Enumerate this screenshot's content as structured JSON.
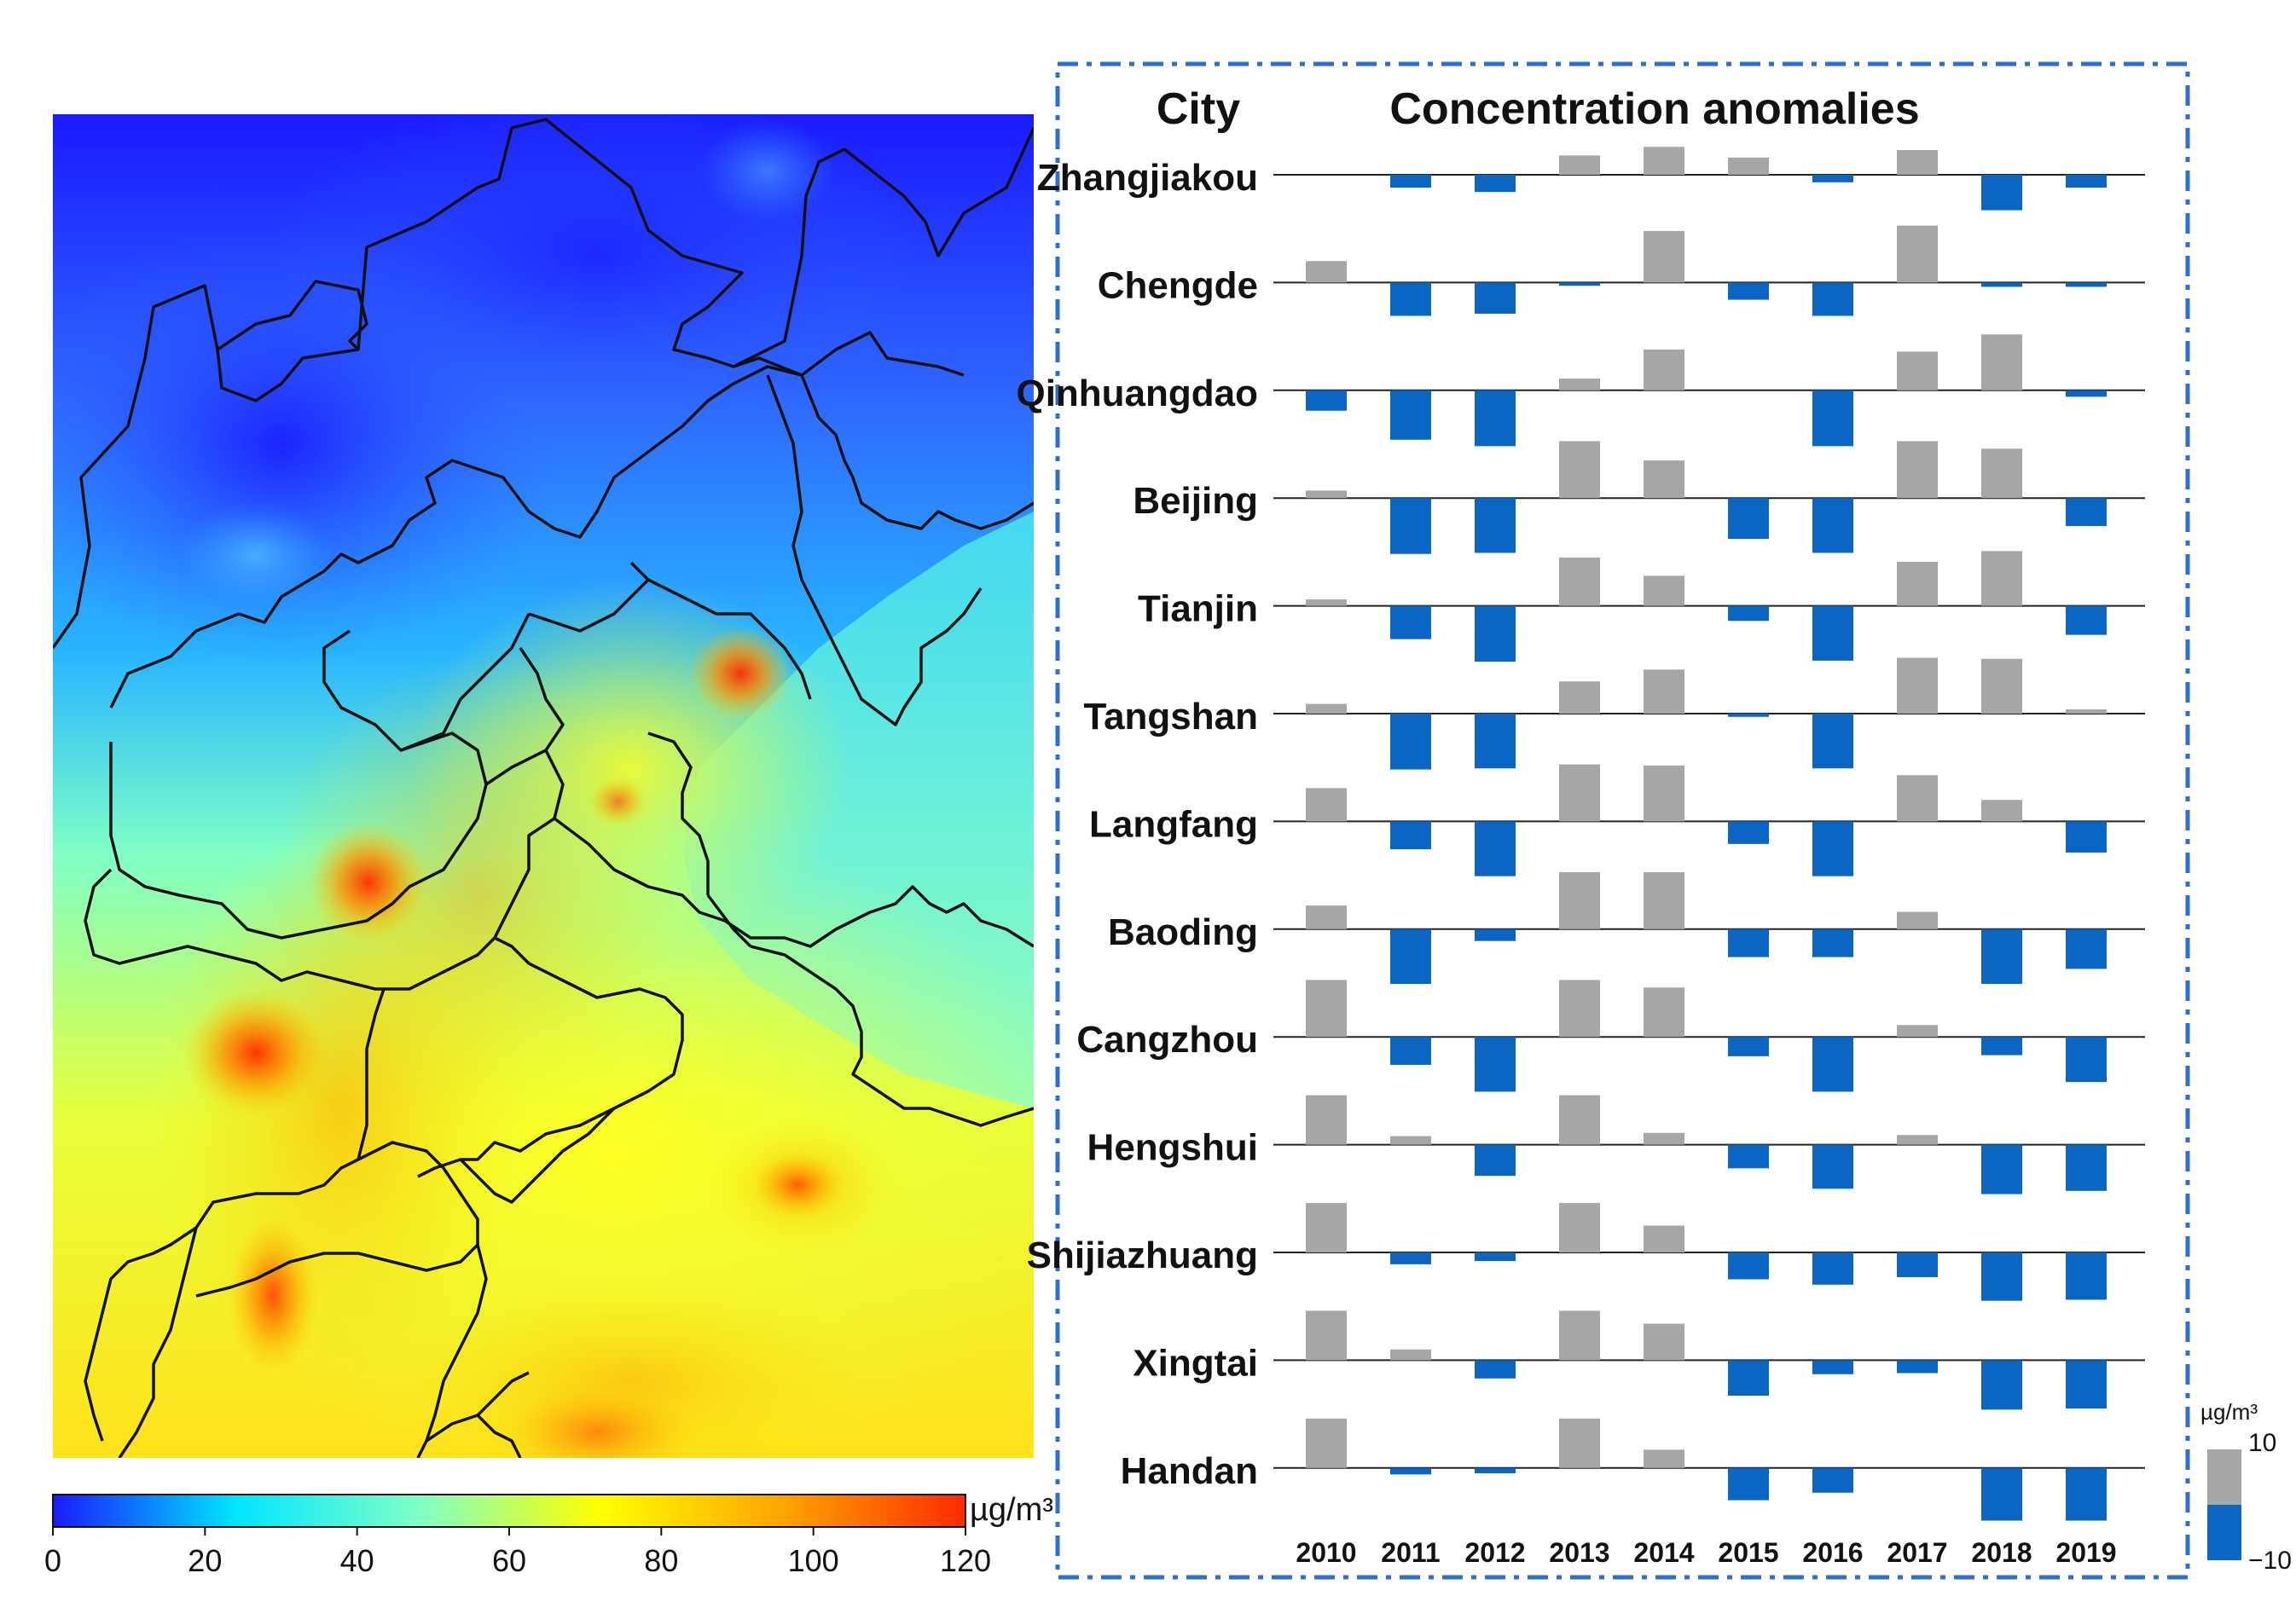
{
  "map_panel": {
    "colorbar": {
      "unit": "µg/m³",
      "ticks": [
        "0",
        "20",
        "40",
        "60",
        "80",
        "100",
        "120"
      ],
      "min": 0,
      "max": 120,
      "stops": [
        "#1a1aff",
        "#00e5ff",
        "#7fffc8",
        "#ffff00",
        "#ffa500",
        "#ff2a00"
      ]
    }
  },
  "chart_data": {
    "type": "bar",
    "header_city": "City",
    "header_title": "Concentration anomalies",
    "categories": [
      "2010",
      "2011",
      "2012",
      "2013",
      "2014",
      "2015",
      "2016",
      "2017",
      "2018",
      "2019"
    ],
    "ylim": [
      -10,
      10
    ],
    "unit": "µg/m³",
    "legend_max": "10",
    "legend_min": "−10",
    "positive_color": "#a6a6a6",
    "negative_color": "#0a66c2",
    "series": [
      {
        "name": "Zhangjiakou",
        "values": [
          0,
          -1.2,
          -1.6,
          1.8,
          2.6,
          1.6,
          -0.7,
          2.3,
          -3.3,
          -1.2
        ]
      },
      {
        "name": "Chengde",
        "values": [
          2,
          -3.1,
          -2.9,
          -0.3,
          4.8,
          -1.6,
          -3.1,
          5.3,
          -0.4,
          -0.4
        ]
      },
      {
        "name": "Qinhuangdao",
        "values": [
          -1.9,
          -4.6,
          -5.2,
          1.1,
          3.8,
          0,
          -5.2,
          3.6,
          5.2,
          -0.6
        ]
      },
      {
        "name": "Beijing",
        "values": [
          0.7,
          -5.2,
          -5.1,
          5.3,
          3.5,
          -3.8,
          -5.1,
          5.3,
          4.6,
          -2.6
        ]
      },
      {
        "name": "Tianjin",
        "values": [
          0.6,
          -3.1,
          -5.2,
          4.5,
          2.8,
          -1.4,
          -5.1,
          4.1,
          5.1,
          -2.7
        ]
      },
      {
        "name": "Tangshan",
        "values": [
          0.9,
          -5.2,
          -5.1,
          3,
          4.1,
          -0.3,
          -5.1,
          5.2,
          5.1,
          0.4
        ]
      },
      {
        "name": "Langfang",
        "values": [
          3.1,
          -2.6,
          -5.1,
          5.3,
          5.2,
          -2.1,
          -5.1,
          4.3,
          2,
          -2.9
        ]
      },
      {
        "name": "Baoding",
        "values": [
          2.2,
          -5.1,
          -1.1,
          5.3,
          5.3,
          -2.6,
          -2.6,
          1.6,
          -5.1,
          -3.7
        ]
      },
      {
        "name": "Cangzhou",
        "values": [
          5.3,
          -2.6,
          -5.1,
          5.3,
          4.6,
          -1.8,
          -5.1,
          1.1,
          -1.7,
          -4.2
        ]
      },
      {
        "name": "Hengshui",
        "values": [
          4.6,
          0.8,
          -2.9,
          4.6,
          1.1,
          -2.2,
          -4.1,
          0.9,
          -4.6,
          -4.3
        ]
      },
      {
        "name": "Shijiazhuang",
        "values": [
          4.6,
          -1.1,
          -0.8,
          4.6,
          2.5,
          -2.5,
          -3,
          -2.3,
          -4.5,
          -4.4
        ]
      },
      {
        "name": "Xingtai",
        "values": [
          4.6,
          1,
          -1.7,
          4.6,
          3.4,
          -3.3,
          -1.3,
          -1.2,
          -4.6,
          -4.5
        ]
      },
      {
        "name": "Handan",
        "values": [
          4.6,
          -0.6,
          -0.5,
          4.6,
          1.7,
          -3,
          -2.3,
          0,
          -4.9,
          -4.9
        ]
      }
    ]
  }
}
